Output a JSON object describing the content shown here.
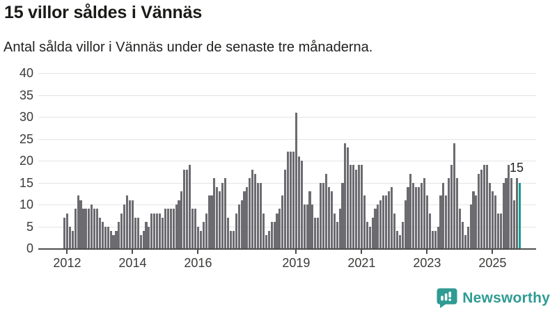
{
  "header": {
    "title": "15 villor såldes i Vännäs",
    "subtitle": "Antal sålda villor i Vännäs under de senaste tre månaderna."
  },
  "chart_data": {
    "type": "bar",
    "title": "15 villor såldes i Vännäs",
    "subtitle": "Antal sålda villor i Vännäs under de senaste tre månaderna.",
    "xlabel": "",
    "ylabel": "",
    "ylim": [
      0,
      40
    ],
    "yticks": [
      0,
      5,
      10,
      15,
      20,
      25,
      30,
      35,
      40
    ],
    "grid": true,
    "legend_position": "none",
    "x_tick_labels": [
      "2012",
      "2014",
      "2016",
      "2019",
      "2021",
      "2023",
      "2025"
    ],
    "x_tick_indices": [
      1,
      25,
      49,
      85,
      109,
      133,
      157
    ],
    "x_unit": "month",
    "values": [
      7,
      8,
      5,
      4,
      9,
      12,
      11,
      9,
      9,
      9,
      10,
      9,
      9,
      7,
      6,
      5,
      5,
      4,
      3,
      4,
      6,
      8,
      10,
      12,
      11,
      11,
      7,
      7,
      3,
      4,
      6,
      5,
      8,
      8,
      8,
      8,
      7,
      9,
      9,
      9,
      9,
      10,
      11,
      13,
      18,
      18,
      19,
      9,
      9,
      5,
      4,
      6,
      8,
      12,
      12,
      16,
      14,
      13,
      15,
      16,
      7,
      4,
      4,
      8,
      10,
      11,
      13,
      14,
      16,
      18,
      17,
      15,
      15,
      8,
      3,
      4,
      6,
      6,
      8,
      9,
      12,
      18,
      22,
      22,
      22,
      31,
      21,
      20,
      10,
      10,
      13,
      10,
      7,
      7,
      15,
      15,
      17,
      14,
      13,
      8,
      6,
      9,
      15,
      24,
      23,
      19,
      19,
      18,
      19,
      19,
      12,
      6,
      5,
      7,
      9,
      10,
      11,
      12,
      12,
      13,
      14,
      8,
      4,
      3,
      6,
      11,
      14,
      17,
      15,
      14,
      14,
      15,
      16,
      12,
      8,
      4,
      4,
      5,
      12,
      15,
      12,
      16,
      19,
      24,
      16,
      9,
      6,
      3,
      5,
      10,
      13,
      12,
      17,
      18,
      19,
      19,
      15,
      13,
      12,
      8,
      8,
      15,
      16,
      19,
      16,
      11,
      16,
      15
    ],
    "highlight_index": 167,
    "highlight_label": "15",
    "bar_color": "#6b6b70",
    "highlight_color": "#129e98"
  },
  "colors": {
    "background": "#ffffff",
    "text_dark": "#1a1a17",
    "axis_text": "#3a3a38",
    "gridline": "#e4e4e4",
    "axis_line": "#4d4d4d",
    "bar": "#6b6b70",
    "highlight": "#129e98",
    "brand_teal": "#2f9b93"
  },
  "footer": {
    "brand": "Newsworthy"
  }
}
